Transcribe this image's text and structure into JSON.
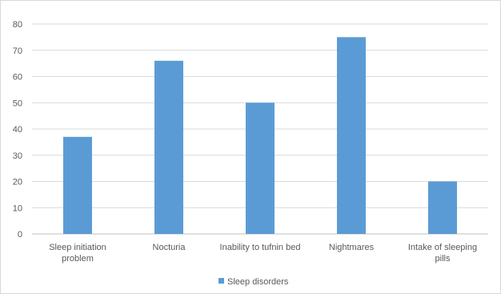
{
  "chart_data": {
    "type": "bar",
    "title": "",
    "xlabel": "",
    "ylabel": "",
    "categories": [
      [
        "Sleep initiation",
        "problem"
      ],
      [
        "Nocturia"
      ],
      [
        "Inability to tufnin bed"
      ],
      [
        "Nightmares"
      ],
      [
        "Intake of sleeping",
        "pills"
      ]
    ],
    "series": [
      {
        "name": "Sleep disorders",
        "values": [
          37,
          66,
          50,
          75,
          20
        ],
        "color": "#5b9bd5"
      }
    ],
    "ylim": [
      0,
      80
    ],
    "yticks": [
      0,
      10,
      20,
      30,
      40,
      50,
      60,
      70,
      80
    ],
    "grid": true,
    "legend": "bottom"
  }
}
